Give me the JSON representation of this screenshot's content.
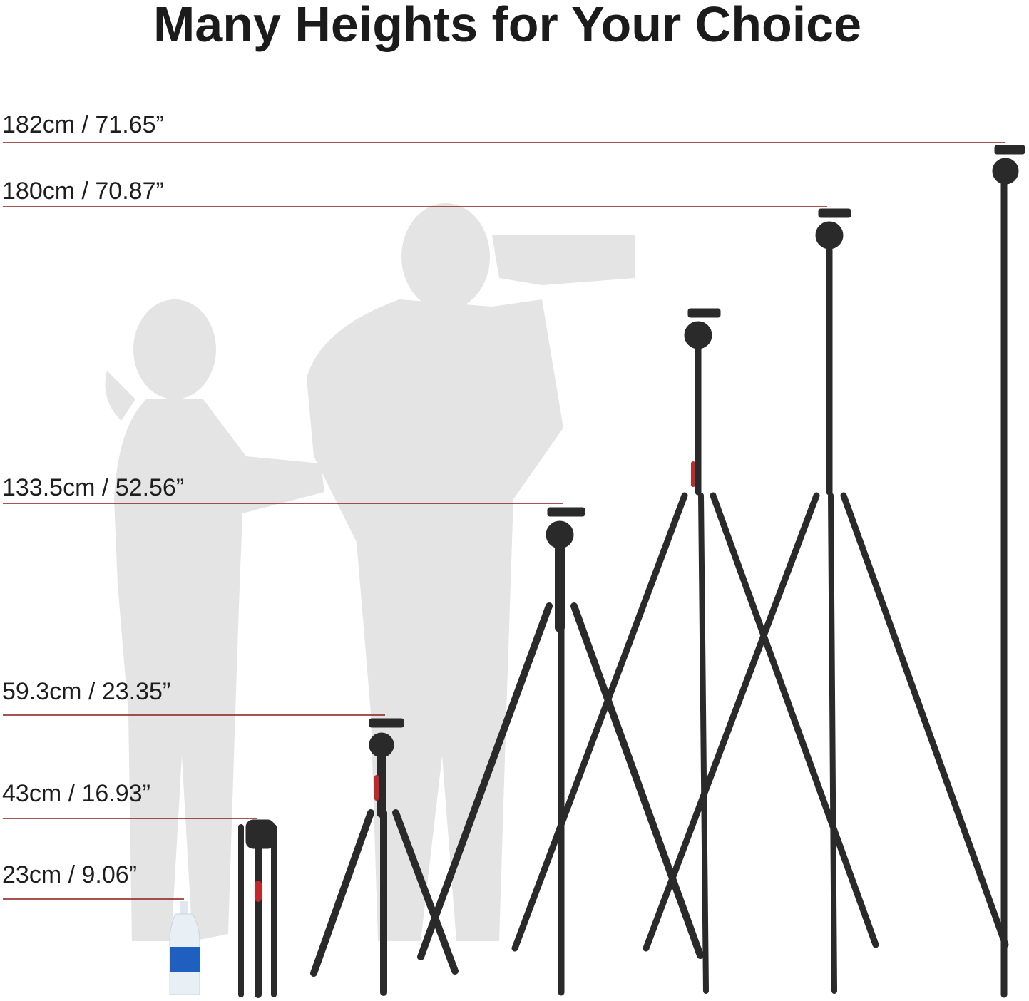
{
  "title": "Many Heights for Your Choice",
  "heights": [
    {
      "label": "182cm / 71.65”"
    },
    {
      "label": "180cm / 70.87”"
    },
    {
      "label": "133.5cm / 52.56”"
    },
    {
      "label": "59.3cm / 23.35”"
    },
    {
      "label": "43cm / 16.93”"
    },
    {
      "label": "23cm / 9.06”"
    }
  ],
  "colors": {
    "guide_line": "#8b1a1a",
    "silhouette": "#e4e4e4",
    "tripod": "#2a2a2a",
    "accent": "#c0282b",
    "bottle_label": "#1f5fbf"
  }
}
